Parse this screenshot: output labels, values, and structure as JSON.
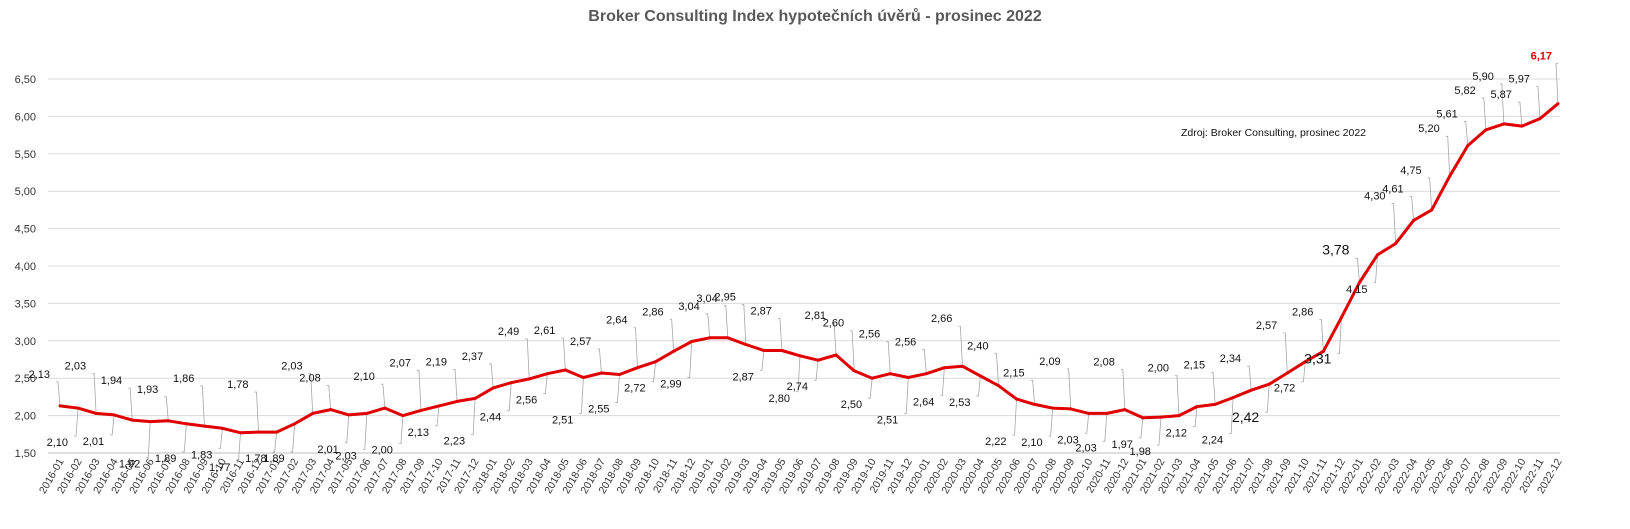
{
  "chart_data": {
    "type": "line",
    "title": "Broker Consulting Index hypotečních úvěrů - prosinec 2022",
    "xlabel": "",
    "ylabel": "",
    "ylim": [
      1.5,
      6.5
    ],
    "yticks": [
      "1,50",
      "2,00",
      "2,50",
      "3,00",
      "3,50",
      "4,00",
      "4,50",
      "5,00",
      "5,50",
      "6,00",
      "6,50"
    ],
    "grid": true,
    "line_color": "#e00000",
    "annotation": "Zdroj: Broker Consulting, prosinec 2022",
    "x": [
      "2016-01",
      "2016-02",
      "2016-03",
      "2016-04",
      "2016-05",
      "2016-06",
      "2016-07",
      "2016-08",
      "2016-09",
      "2016-10",
      "2016-11",
      "2016-12",
      "2017-01",
      "2017-02",
      "2017-03",
      "2017-04",
      "2017-05",
      "2017-06",
      "2017-07",
      "2017-08",
      "2017-09",
      "2017-10",
      "2017-11",
      "2017-12",
      "2018-01",
      "2018-02",
      "2018-03",
      "2018-04",
      "2018-05",
      "2018-06",
      "2018-07",
      "2018-08",
      "2018-09",
      "2018-10",
      "2018-11",
      "2018-12",
      "2019-01",
      "2019-02",
      "2019-03",
      "2019-04",
      "2019-05",
      "2019-06",
      "2019-07",
      "2019-08",
      "2019-09",
      "2019-10",
      "2019-11",
      "2019-12",
      "2020-01",
      "2020-02",
      "2020-03",
      "2020-04",
      "2020-05",
      "2020-06",
      "2020-07",
      "2020-08",
      "2020-09",
      "2020-10",
      "2020-11",
      "2020-12",
      "2021-01",
      "2021-02",
      "2021-03",
      "2021-04",
      "2021-05",
      "2021-06",
      "2021-07",
      "2021-08",
      "2021-09",
      "2021-10",
      "2021-11",
      "2021-12",
      "2022-01",
      "2022-02",
      "2022-03",
      "2022-04",
      "2022-05",
      "2022-06",
      "2022-07",
      "2022-08",
      "2022-09",
      "2022-10",
      "2022-11",
      "2022-12"
    ],
    "series": [
      {
        "values": [
          2.13,
          2.1,
          2.03,
          2.01,
          1.94,
          1.92,
          1.93,
          1.89,
          1.86,
          1.83,
          1.77,
          1.78,
          1.78,
          1.89,
          2.03,
          2.08,
          2.01,
          2.03,
          2.1,
          2.0,
          2.07,
          2.13,
          2.19,
          2.23,
          2.37,
          2.44,
          2.49,
          2.56,
          2.61,
          2.51,
          2.57,
          2.55,
          2.64,
          2.72,
          2.86,
          2.99,
          3.04,
          3.04,
          2.95,
          2.87,
          2.87,
          2.8,
          2.74,
          2.81,
          2.6,
          2.5,
          2.56,
          2.51,
          2.56,
          2.64,
          2.66,
          2.53,
          2.4,
          2.22,
          2.15,
          2.1,
          2.09,
          2.03,
          2.03,
          2.08,
          1.97,
          1.98,
          2.0,
          2.12,
          2.15,
          2.24,
          2.34,
          2.42,
          2.57,
          2.72,
          2.86,
          3.31,
          3.78,
          4.15,
          4.3,
          4.61,
          4.75,
          5.2,
          5.61,
          5.82,
          5.9,
          5.87,
          5.97,
          6.17
        ],
        "labels": [
          "2,13",
          "2,10",
          "2,03",
          "2,01",
          "1,94",
          "1,92",
          "1,93",
          "1,89",
          "1,86",
          "1,83",
          "1,77",
          "1,78",
          "1,78",
          "1,89",
          "2,03",
          "2,08",
          "2,01",
          "2,03",
          "2,10",
          "2,00",
          "2,07",
          "2,13",
          "2,19",
          "2,23",
          "2,37",
          "2,44",
          "2,49",
          "2,56",
          "2,61",
          "2,51",
          "2,57",
          "2,55",
          "2,64",
          "2,72",
          "2,86",
          "2,99",
          "3,04",
          "3,04",
          "2,95",
          "2,87",
          "2,87",
          "2,80",
          "2,74",
          "2,81",
          "2,60",
          "2,50",
          "2,56",
          "2,51",
          "2,56",
          "2,64",
          "2,66",
          "2,53",
          "2,40",
          "2,22",
          "2,15",
          "2,10",
          "2,09",
          "2,03",
          "2,03",
          "2,08",
          "1,97",
          "1,98",
          "2,00",
          "2,12",
          "2,15",
          "2,24",
          "2,34",
          "2,42",
          "2,57",
          "2,72",
          "2,86",
          "3,31",
          "3,78",
          "4,15",
          "4,30",
          "4,61",
          "4,75",
          "5,20",
          "5,61",
          "5,82",
          "5,90",
          "5,87",
          "5,97",
          "6,17"
        ]
      }
    ]
  }
}
